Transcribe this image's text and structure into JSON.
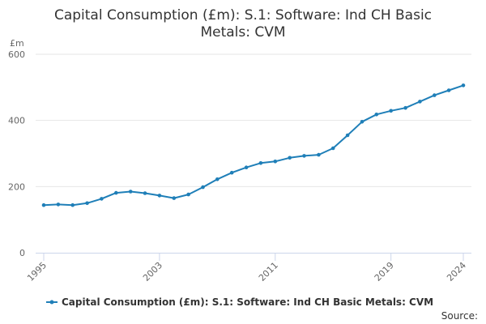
{
  "chart_data": {
    "type": "line",
    "title_lines": [
      "Capital Consumption (£m): S.1: Software: Ind CH Basic",
      "Metals: CVM"
    ],
    "ylabel": "£m",
    "xlabel": "",
    "ylim": [
      0,
      600
    ],
    "xlim": [
      1995,
      2024
    ],
    "y_ticks": [
      0,
      200,
      400,
      600
    ],
    "y_tick_labels": [
      "0",
      "200",
      "400",
      "600"
    ],
    "x_ticks": [
      1995,
      2003,
      2011,
      2019,
      2024
    ],
    "x_tick_labels": [
      "1995",
      "2003",
      "2011",
      "2019",
      "2024"
    ],
    "grid": "horizontal",
    "legend_position": "bottom",
    "series": [
      {
        "name": "Capital Consumption (£m): S.1: Software: Ind CH Basic Metals: CVM",
        "color": "#1f7fb8",
        "x": [
          1995,
          1996,
          1997,
          1998,
          1999,
          2000,
          2001,
          2002,
          2003,
          2004,
          2005,
          2006,
          2007,
          2008,
          2009,
          2010,
          2011,
          2012,
          2013,
          2014,
          2015,
          2016,
          2017,
          2018,
          2019,
          2020,
          2021,
          2022,
          2023,
          2024
        ],
        "y": [
          144,
          146,
          144,
          150,
          163,
          181,
          185,
          180,
          173,
          165,
          176,
          198,
          222,
          242,
          258,
          271,
          276,
          287,
          293,
          296,
          316,
          355,
          396,
          418,
          429,
          438,
          457,
          476,
          491,
          506
        ]
      }
    ],
    "source_label": "Source:"
  }
}
